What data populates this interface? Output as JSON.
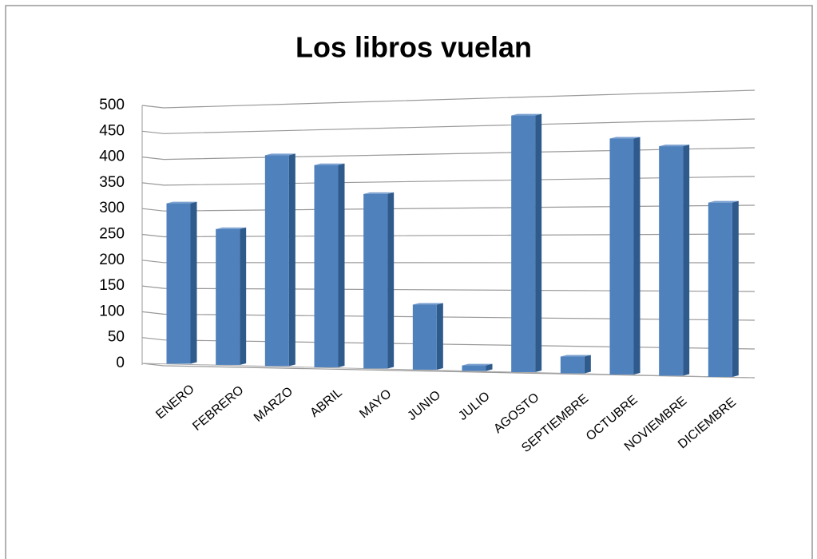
{
  "chart_data": {
    "type": "bar",
    "title": "Los libros vuelan",
    "categories": [
      "ENERO",
      "FEBRERO",
      "MARZO",
      "ABRIL",
      "MAYO",
      "JUNIO",
      "JULIO",
      "AGOSTO",
      "SEPTIEMBRE",
      "OCTUBRE",
      "NOVIEMBRE",
      "DICIEMBRE"
    ],
    "values": [
      310,
      260,
      400,
      380,
      325,
      120,
      10,
      465,
      30,
      420,
      405,
      305
    ],
    "color": "#4f81bd",
    "ylim": [
      0,
      500
    ],
    "yticks": [
      0,
      50,
      100,
      150,
      200,
      250,
      300,
      350,
      400,
      450,
      500
    ],
    "grid": true
  }
}
